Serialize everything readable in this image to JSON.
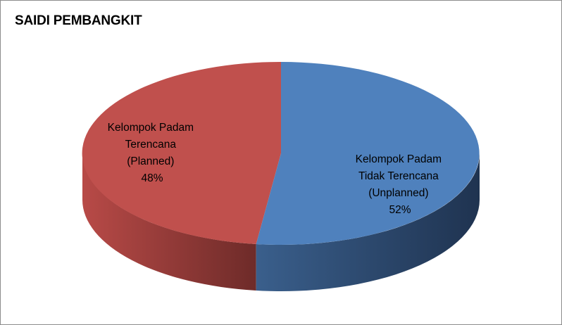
{
  "chart_data": {
    "type": "pie",
    "title": "SAIDI PEMBANGKIT",
    "style": "3d",
    "slices": [
      {
        "label_lines": [
          "Kelompok Padam",
          "Tidak Terencana",
          "(Unplanned)"
        ],
        "percent_label": "52%",
        "value": 52,
        "color": "#4f81bd",
        "side_color_light": "#3a5f8c",
        "side_color_dark": "#1f3350"
      },
      {
        "label_lines": [
          "Kelompok Padam",
          "Terencana",
          "(Planned)"
        ],
        "percent_label": "48%",
        "value": 48,
        "color": "#c0504d",
        "side_color_light": "#b84a47",
        "side_color_dark": "#6e2b29"
      }
    ]
  }
}
